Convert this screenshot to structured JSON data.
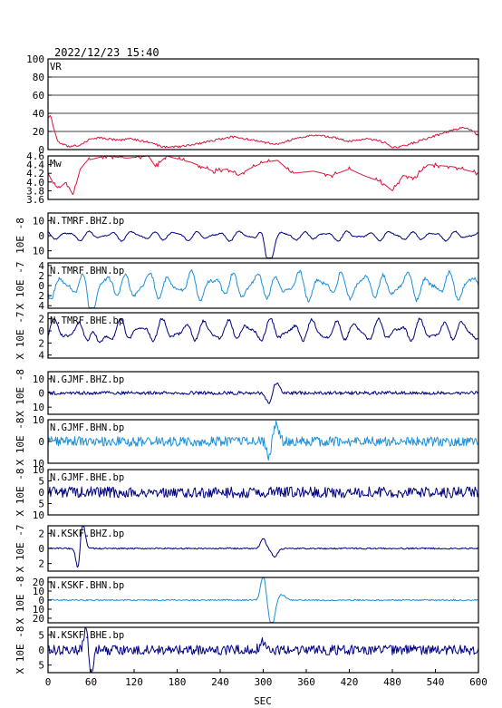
{
  "timestamp": "2022/12/23  15:40",
  "xaxis": {
    "label": "SEC",
    "range": [
      0,
      600
    ],
    "ticks": [
      0,
      60,
      120,
      180,
      240,
      300,
      360,
      420,
      480,
      540,
      600
    ]
  },
  "colors": {
    "red": "#dc143c",
    "dark": "#000080",
    "light": "#1e90d8",
    "frame": "#000000",
    "grid": "#000000"
  },
  "chart_data": {
    "type": "line",
    "panels": [
      {
        "label": "VR",
        "scale": "",
        "color": "red",
        "ylim": [
          0,
          100
        ],
        "yticks": [
          0,
          20,
          40,
          60,
          80,
          100
        ],
        "ytick_labels": [
          "0",
          "20",
          "40",
          "60",
          "80",
          "100"
        ],
        "grid": true,
        "kind": "vr",
        "keypoints": [
          [
            0,
            35
          ],
          [
            4,
            38
          ],
          [
            8,
            22
          ],
          [
            14,
            8
          ],
          [
            30,
            3
          ],
          [
            45,
            5
          ],
          [
            60,
            12
          ],
          [
            75,
            13
          ],
          [
            100,
            10
          ],
          [
            115,
            12
          ],
          [
            140,
            8
          ],
          [
            160,
            3
          ],
          [
            185,
            3
          ],
          [
            205,
            6
          ],
          [
            230,
            10
          ],
          [
            255,
            14
          ],
          [
            275,
            12
          ],
          [
            300,
            8
          ],
          [
            320,
            6
          ],
          [
            345,
            12
          ],
          [
            370,
            16
          ],
          [
            395,
            14
          ],
          [
            420,
            9
          ],
          [
            445,
            12
          ],
          [
            470,
            8
          ],
          [
            480,
            2
          ],
          [
            495,
            4
          ],
          [
            520,
            10
          ],
          [
            550,
            18
          ],
          [
            575,
            24
          ],
          [
            590,
            22
          ],
          [
            600,
            15
          ]
        ]
      },
      {
        "label": "Mw",
        "scale": "",
        "color": "red",
        "ylim": [
          3.6,
          4.6
        ],
        "yticks": [
          3.6,
          3.8,
          4.0,
          4.2,
          4.4,
          4.6
        ],
        "ytick_labels": [
          "3.6",
          "3.8",
          "4.0",
          "4.2",
          "4.4",
          "4.6"
        ],
        "grid": false,
        "kind": "mw",
        "keypoints": [
          [
            0,
            4.2
          ],
          [
            8,
            3.95
          ],
          [
            15,
            3.85
          ],
          [
            25,
            4.0
          ],
          [
            35,
            3.7
          ],
          [
            45,
            4.3
          ],
          [
            55,
            4.5
          ],
          [
            80,
            4.6
          ],
          [
            110,
            4.55
          ],
          [
            140,
            4.6
          ],
          [
            150,
            4.35
          ],
          [
            165,
            4.6
          ],
          [
            200,
            4.45
          ],
          [
            230,
            4.25
          ],
          [
            250,
            4.3
          ],
          [
            265,
            4.15
          ],
          [
            280,
            4.3
          ],
          [
            300,
            4.45
          ],
          [
            320,
            4.5
          ],
          [
            340,
            4.2
          ],
          [
            370,
            4.25
          ],
          [
            395,
            4.15
          ],
          [
            420,
            4.3
          ],
          [
            440,
            4.15
          ],
          [
            465,
            4.0
          ],
          [
            480,
            3.8
          ],
          [
            495,
            4.15
          ],
          [
            510,
            4.1
          ],
          [
            530,
            4.4
          ],
          [
            565,
            4.35
          ],
          [
            600,
            4.2
          ]
        ]
      },
      {
        "label": "N.TMRF.BHZ.bp",
        "scale": "10E -8",
        "color": "dark",
        "ylim": [
          -15,
          15
        ],
        "yticks": [
          -10,
          0,
          10
        ],
        "ytick_labels": [
          "10",
          "0",
          "10"
        ],
        "kind": "wave",
        "noise": 3,
        "period": 30,
        "seed": 3,
        "events": [
          {
            "t": 305,
            "amp": -26,
            "w": 9
          },
          {
            "t": 300,
            "amp": 15,
            "w": 7
          }
        ]
      },
      {
        "label": "N.TMRF.BHN.bp",
        "scale": "X 10E -7",
        "color": "light",
        "ylim": [
          -4.5,
          4.5
        ],
        "yticks": [
          -4,
          -2,
          0,
          2,
          4
        ],
        "ytick_labels": [
          "4",
          "2",
          "0",
          "2",
          "4"
        ],
        "kind": "wave",
        "noise": 2.6,
        "period": 30,
        "seed": 7,
        "events": [
          {
            "t": 60,
            "amp": -4,
            "w": 8
          }
        ]
      },
      {
        "label": "N.TMRF.BHE.bp",
        "scale": "X 10E -7",
        "color": "dark",
        "ylim": [
          -4.5,
          3
        ],
        "yticks": [
          -4,
          -2,
          0,
          2
        ],
        "ytick_labels": [
          "4",
          "2",
          "0",
          "2"
        ],
        "kind": "wave",
        "noise": 1.7,
        "period": 30,
        "seed": 11,
        "events": [
          {
            "t": 70,
            "amp": -2.5,
            "w": 8
          }
        ]
      },
      {
        "label": "N.GJMF.BHZ.bp",
        "scale": "X 10E -8",
        "color": "dark",
        "ylim": [
          -15,
          15
        ],
        "yticks": [
          -10,
          0,
          10
        ],
        "ytick_labels": [
          "10",
          "0",
          "10"
        ],
        "kind": "noisy",
        "noise": 1.2,
        "seed": 13,
        "events": [
          {
            "t": 308,
            "amp": -8,
            "w": 5
          },
          {
            "t": 318,
            "amp": 7,
            "w": 6
          }
        ]
      },
      {
        "label": "N.GJMF.BHN.bp",
        "scale": "X 10E -8",
        "color": "light",
        "ylim": [
          -10,
          10
        ],
        "yticks": [
          -10,
          0,
          10
        ],
        "ytick_labels": [
          "10",
          "0",
          "10"
        ],
        "kind": "noisy",
        "noise": 2.2,
        "seed": 17,
        "events": [
          {
            "t": 308,
            "amp": -7,
            "w": 4
          },
          {
            "t": 318,
            "amp": 8,
            "w": 5
          }
        ]
      },
      {
        "label": "N.GJMF.BHE.bp",
        "scale": "X 10E -8",
        "color": "dark",
        "ylim": [
          -10,
          10
        ],
        "yticks": [
          -10,
          -5,
          0,
          5,
          10
        ],
        "ytick_labels": [
          "10",
          "5",
          "0",
          "5",
          "10"
        ],
        "kind": "noisy",
        "noise": 2.4,
        "seed": 19,
        "events": []
      },
      {
        "label": "N.KSKF.BHZ.bp",
        "scale": "X 10E -7",
        "color": "dark",
        "ylim": [
          -3,
          3
        ],
        "yticks": [
          -2,
          0,
          2
        ],
        "ytick_labels": [
          "2",
          "0",
          "2"
        ],
        "kind": "event",
        "noise": 0.1,
        "seed": 23,
        "events": [
          {
            "t": 48,
            "amp": 3.5,
            "w": 5
          },
          {
            "t": 42,
            "amp": -3.2,
            "w": 4
          },
          {
            "t": 300,
            "amp": 1.3,
            "w": 5
          },
          {
            "t": 316,
            "amp": -1.1,
            "w": 6
          }
        ]
      },
      {
        "label": "N.KSKF.BHN.bp",
        "scale": "X 10E -8",
        "color": "light",
        "ylim": [
          -25,
          25
        ],
        "yticks": [
          -20,
          -10,
          0,
          10,
          20
        ],
        "ytick_labels": [
          "20",
          "10",
          "0",
          "10",
          "20"
        ],
        "kind": "event",
        "noise": 0.8,
        "seed": 29,
        "events": [
          {
            "t": 300,
            "amp": 28,
            "w": 5
          },
          {
            "t": 312,
            "amp": -30,
            "w": 6
          },
          {
            "t": 325,
            "amp": 6,
            "w": 8
          }
        ]
      },
      {
        "label": "N.KSKF.BHE.bp",
        "scale": "X 10E -8",
        "color": "dark",
        "ylim": [
          -7.5,
          7.5
        ],
        "yticks": [
          -5,
          0,
          5
        ],
        "ytick_labels": [
          "5",
          "0",
          "5"
        ],
        "kind": "noisy",
        "noise": 1.6,
        "seed": 31,
        "events": [
          {
            "t": 60,
            "amp": -9,
            "w": 4
          },
          {
            "t": 53,
            "amp": 8,
            "w": 4
          },
          {
            "t": 300,
            "amp": 3,
            "w": 6
          }
        ]
      }
    ]
  }
}
